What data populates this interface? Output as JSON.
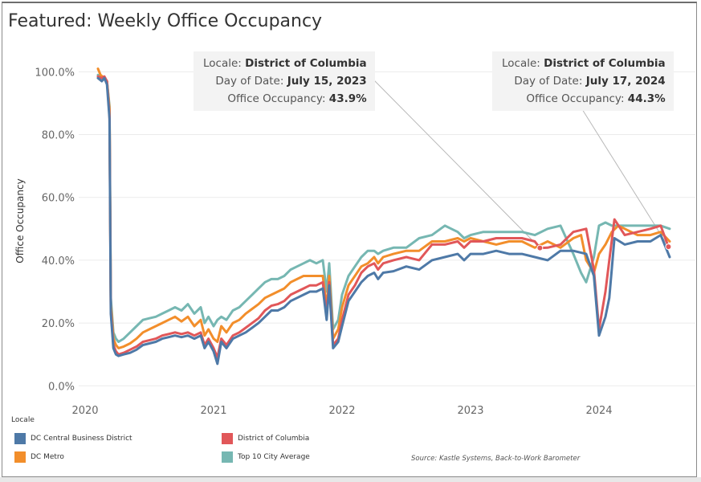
{
  "title": "Featured: Weekly Office Occupancy",
  "source": "Source: Kastle Systems, Back-to-Work Barometer",
  "legend": {
    "heading": "Locale",
    "items": [
      {
        "label": "DC Central Business District",
        "color": "#4e79a7"
      },
      {
        "label": "District of Columbia",
        "color": "#e15759"
      },
      {
        "label": "DC Metro",
        "color": "#f28e2b"
      },
      {
        "label": "Top 10 City Average",
        "color": "#76b7b2"
      }
    ]
  },
  "tooltips": [
    {
      "locale_label": "Locale:",
      "locale_value": "District of Columbia",
      "date_label": "Day of Date:",
      "date_value": "July 15, 2023",
      "occ_label": "Office Occupancy:",
      "occ_value": "43.9%"
    },
    {
      "locale_label": "Locale:",
      "locale_value": "District of Columbia",
      "date_label": "Day of Date:",
      "date_value": "July 17, 2024",
      "occ_label": "Office Occupancy:",
      "occ_value": "44.3%"
    }
  ],
  "chart_data": {
    "type": "line",
    "title": "Featured: Weekly Office Occupancy",
    "xlabel": "",
    "ylabel": "Office Occupancy",
    "x_ticks": [
      "2020",
      "2021",
      "2022",
      "2023",
      "2024"
    ],
    "y_ticks": [
      "0.0%",
      "20.0%",
      "40.0%",
      "60.0%",
      "80.0%",
      "100.0%"
    ],
    "xlim": [
      2019.95,
      2024.75
    ],
    "ylim": [
      -3,
      107
    ],
    "grid": true,
    "legend_position": "bottom",
    "tooltip_points": [
      {
        "x": 2023.54,
        "y": 43.9
      },
      {
        "x": 2024.54,
        "y": 44.3
      }
    ],
    "series": [
      {
        "name": "DC Central Business District",
        "color": "#4e79a7",
        "x": [
          2020.1,
          2020.13,
          2020.15,
          2020.17,
          2020.19,
          2020.2,
          2020.22,
          2020.24,
          2020.26,
          2020.3,
          2020.35,
          2020.4,
          2020.45,
          2020.5,
          2020.55,
          2020.6,
          2020.65,
          2020.7,
          2020.75,
          2020.8,
          2020.85,
          2020.9,
          2020.93,
          2020.96,
          2021.0,
          2021.03,
          2021.06,
          2021.1,
          2021.15,
          2021.2,
          2021.25,
          2021.3,
          2021.35,
          2021.4,
          2021.45,
          2021.5,
          2021.55,
          2021.6,
          2021.65,
          2021.7,
          2021.75,
          2021.8,
          2021.85,
          2021.88,
          2021.9,
          2021.93,
          2021.97,
          2022.0,
          2022.05,
          2022.1,
          2022.15,
          2022.2,
          2022.25,
          2022.28,
          2022.32,
          2022.4,
          2022.5,
          2022.6,
          2022.7,
          2022.8,
          2022.9,
          2022.95,
          2023.0,
          2023.1,
          2023.2,
          2023.3,
          2023.4,
          2023.5,
          2023.6,
          2023.7,
          2023.8,
          2023.9,
          2023.96,
          2024.0,
          2024.05,
          2024.08,
          2024.12,
          2024.2,
          2024.3,
          2024.4,
          2024.48,
          2024.55
        ],
        "y": [
          98,
          97,
          98,
          96,
          85,
          23,
          12,
          10,
          9.5,
          10,
          10.5,
          11.5,
          13,
          13.5,
          14,
          15,
          15.5,
          16,
          15.5,
          16,
          15,
          16,
          12,
          14,
          11,
          7,
          14,
          12,
          15,
          16,
          17,
          18.5,
          20,
          22,
          24,
          24,
          25,
          27,
          28,
          29,
          30,
          30,
          31,
          21,
          32,
          12,
          14,
          19,
          27,
          30,
          33,
          35,
          36,
          34,
          36,
          36.5,
          38,
          37,
          40,
          41,
          42,
          40,
          42,
          42,
          43,
          42,
          42,
          41,
          40,
          43,
          43,
          42,
          35,
          16,
          22,
          28,
          47,
          45,
          46,
          46,
          48,
          41
        ]
      },
      {
        "name": "District of Columbia",
        "color": "#e15759",
        "x": [
          2020.1,
          2020.13,
          2020.15,
          2020.17,
          2020.19,
          2020.2,
          2020.22,
          2020.24,
          2020.26,
          2020.3,
          2020.35,
          2020.4,
          2020.45,
          2020.5,
          2020.55,
          2020.6,
          2020.65,
          2020.7,
          2020.75,
          2020.8,
          2020.85,
          2020.9,
          2020.93,
          2020.96,
          2021.0,
          2021.03,
          2021.06,
          2021.1,
          2021.15,
          2021.2,
          2021.25,
          2021.3,
          2021.35,
          2021.4,
          2021.45,
          2021.5,
          2021.55,
          2021.6,
          2021.65,
          2021.7,
          2021.75,
          2021.8,
          2021.85,
          2021.88,
          2021.9,
          2021.93,
          2021.97,
          2022.0,
          2022.05,
          2022.1,
          2022.15,
          2022.2,
          2022.25,
          2022.28,
          2022.32,
          2022.4,
          2022.5,
          2022.6,
          2022.7,
          2022.8,
          2022.9,
          2022.95,
          2023.0,
          2023.1,
          2023.2,
          2023.3,
          2023.4,
          2023.5,
          2023.54,
          2023.6,
          2023.7,
          2023.8,
          2023.9,
          2023.96,
          2024.0,
          2024.05,
          2024.08,
          2024.12,
          2024.2,
          2024.3,
          2024.4,
          2024.48,
          2024.54
        ],
        "y": [
          98.5,
          98,
          98.5,
          97,
          86,
          24,
          13,
          11,
          10,
          10.5,
          11.5,
          12.5,
          14,
          14.5,
          15,
          16,
          16.5,
          17,
          16.5,
          17,
          16,
          17,
          13,
          15,
          12,
          9,
          15,
          13,
          16,
          17,
          18.5,
          20,
          21.5,
          24,
          25.5,
          26,
          27,
          29,
          30,
          31,
          32,
          32,
          33,
          23,
          33,
          13,
          15,
          21,
          29,
          32,
          36,
          38,
          39,
          37,
          39,
          40,
          41,
          40,
          45,
          45,
          46,
          44,
          46,
          46,
          47,
          47,
          47,
          46,
          43.9,
          44,
          45,
          49,
          50,
          37,
          18,
          30,
          40,
          53,
          48,
          49,
          50,
          51,
          44.3
        ]
      },
      {
        "name": "DC Metro",
        "color": "#f28e2b",
        "x": [
          2020.1,
          2020.12,
          2020.15,
          2020.17,
          2020.19,
          2020.2,
          2020.22,
          2020.24,
          2020.26,
          2020.3,
          2020.35,
          2020.4,
          2020.45,
          2020.5,
          2020.55,
          2020.6,
          2020.65,
          2020.7,
          2020.75,
          2020.8,
          2020.85,
          2020.9,
          2020.93,
          2020.96,
          2021.0,
          2021.03,
          2021.06,
          2021.1,
          2021.15,
          2021.2,
          2021.25,
          2021.3,
          2021.35,
          2021.4,
          2021.45,
          2021.5,
          2021.55,
          2021.6,
          2021.65,
          2021.7,
          2021.75,
          2021.8,
          2021.85,
          2021.88,
          2021.9,
          2021.93,
          2021.97,
          2022.0,
          2022.05,
          2022.1,
          2022.15,
          2022.2,
          2022.25,
          2022.28,
          2022.32,
          2022.4,
          2022.5,
          2022.6,
          2022.7,
          2022.8,
          2022.9,
          2022.95,
          2023.0,
          2023.1,
          2023.2,
          2023.3,
          2023.4,
          2023.5,
          2023.6,
          2023.7,
          2023.8,
          2023.86,
          2023.9,
          2023.96,
          2024.0,
          2024.05,
          2024.1,
          2024.15,
          2024.2,
          2024.3,
          2024.4,
          2024.48,
          2024.55
        ],
        "y": [
          101,
          99,
          98,
          97,
          88,
          26,
          15,
          13,
          12,
          12.5,
          13.5,
          15,
          17,
          18,
          19,
          20,
          21,
          22,
          20.5,
          22,
          19,
          21,
          16,
          18,
          15,
          14,
          19,
          17,
          20,
          21,
          23,
          24.5,
          26,
          28,
          29,
          30,
          31,
          33,
          34,
          35,
          35,
          35,
          35,
          25,
          35,
          15,
          18,
          25,
          32,
          35,
          38,
          39,
          41,
          39,
          41,
          42,
          43,
          43,
          46,
          46,
          47,
          46,
          47,
          46,
          45,
          46,
          46,
          44,
          46,
          44,
          47,
          48,
          40,
          36,
          42,
          45,
          49,
          51,
          50,
          48,
          48,
          49,
          46
        ]
      },
      {
        "name": "Top 10 City Average",
        "color": "#76b7b2",
        "x": [
          2020.1,
          2020.13,
          2020.15,
          2020.17,
          2020.19,
          2020.2,
          2020.22,
          2020.24,
          2020.26,
          2020.3,
          2020.35,
          2020.4,
          2020.45,
          2020.5,
          2020.55,
          2020.6,
          2020.65,
          2020.7,
          2020.75,
          2020.8,
          2020.85,
          2020.9,
          2020.93,
          2020.96,
          2021.0,
          2021.03,
          2021.06,
          2021.1,
          2021.15,
          2021.2,
          2021.25,
          2021.3,
          2021.35,
          2021.4,
          2021.45,
          2021.5,
          2021.55,
          2021.6,
          2021.65,
          2021.7,
          2021.75,
          2021.8,
          2021.85,
          2021.88,
          2021.9,
          2021.93,
          2021.97,
          2022.0,
          2022.05,
          2022.1,
          2022.15,
          2022.2,
          2022.25,
          2022.28,
          2022.32,
          2022.4,
          2022.5,
          2022.6,
          2022.7,
          2022.8,
          2022.85,
          2022.9,
          2022.95,
          2023.0,
          2023.1,
          2023.2,
          2023.3,
          2023.4,
          2023.5,
          2023.6,
          2023.7,
          2023.8,
          2023.86,
          2023.9,
          2023.96,
          2024.0,
          2024.05,
          2024.1,
          2024.2,
          2024.3,
          2024.4,
          2024.48,
          2024.55
        ],
        "y": [
          99,
          98,
          98,
          97,
          89,
          28,
          17,
          15,
          14,
          15,
          17,
          19,
          21,
          21.5,
          22,
          23,
          24,
          25,
          24,
          26,
          23,
          25,
          20,
          22,
          19,
          21,
          22,
          21,
          24,
          25,
          27,
          29,
          31,
          33,
          34,
          34,
          35,
          37,
          38,
          39,
          40,
          39,
          40,
          30,
          39,
          18,
          21,
          29,
          35,
          38,
          41,
          43,
          43,
          42,
          43,
          44,
          44,
          47,
          48,
          51,
          50,
          49,
          47,
          48,
          49,
          49,
          49,
          49,
          48,
          50,
          51,
          42,
          36,
          33,
          41,
          51,
          52,
          51,
          51,
          51,
          51,
          51,
          50
        ]
      }
    ]
  }
}
